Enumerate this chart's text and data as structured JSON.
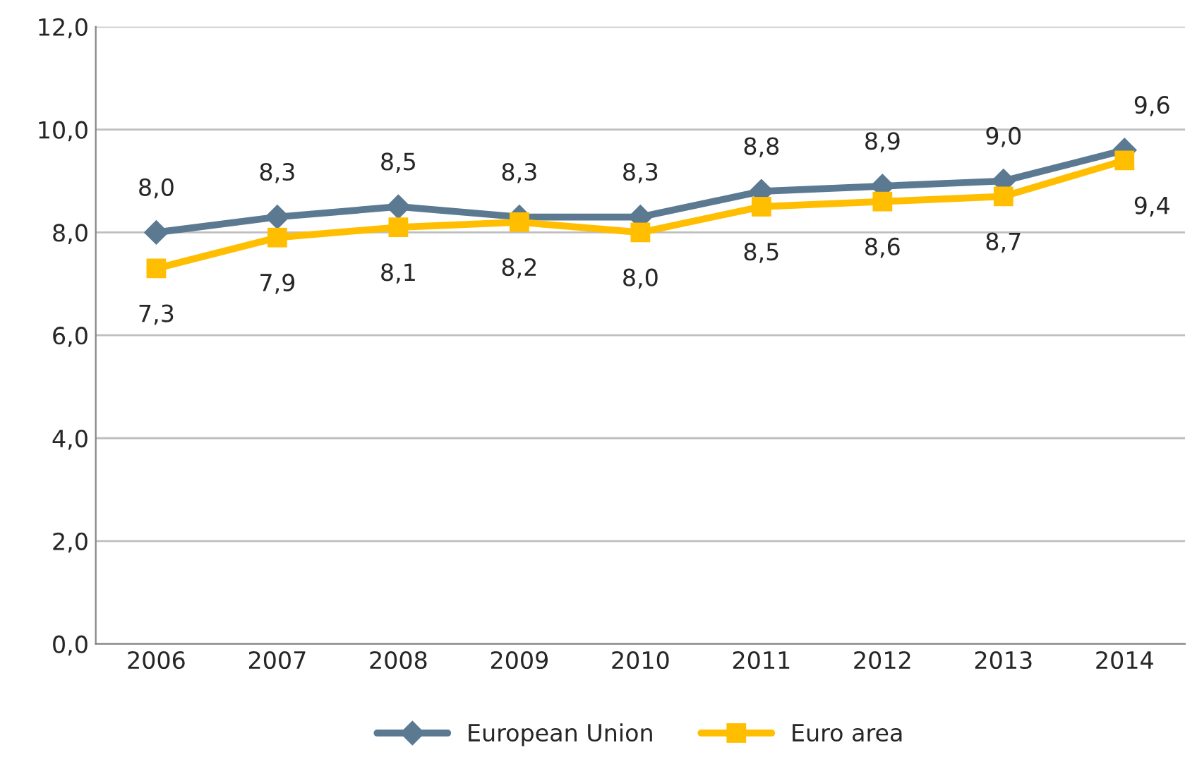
{
  "chart_data": {
    "type": "line",
    "categories": [
      "2006",
      "2007",
      "2008",
      "2009",
      "2010",
      "2011",
      "2012",
      "2013",
      "2014"
    ],
    "series": [
      {
        "name": "European Union",
        "color": "#5b7a92",
        "marker": "diamond",
        "values": [
          8.0,
          8.3,
          8.5,
          8.3,
          8.3,
          8.8,
          8.9,
          9.0,
          9.6
        ],
        "value_labels": [
          "8,0",
          "8,3",
          "8,5",
          "8,3",
          "8,3",
          "8,8",
          "8,9",
          "9,0",
          "9,6"
        ]
      },
      {
        "name": "Euro area",
        "color": "#ffbe00",
        "marker": "square",
        "values": [
          7.3,
          7.9,
          8.1,
          8.2,
          8.0,
          8.5,
          8.6,
          8.7,
          9.4
        ],
        "value_labels": [
          "7,3",
          "7,9",
          "8,1",
          "8,2",
          "8,0",
          "8,5",
          "8,6",
          "8,7",
          "9,4"
        ]
      }
    ],
    "ylim": [
      0,
      12
    ],
    "yticks": [
      {
        "value": 0,
        "label": "0,0"
      },
      {
        "value": 2,
        "label": "2,0"
      },
      {
        "value": 4,
        "label": "4,0"
      },
      {
        "value": 6,
        "label": "6,0"
      },
      {
        "value": 8,
        "label": "8,0"
      },
      {
        "value": 10,
        "label": "10,0"
      },
      {
        "value": 12,
        "label": "12,0"
      }
    ],
    "grid": "y",
    "legend": "bottom",
    "line_style": "solid"
  }
}
